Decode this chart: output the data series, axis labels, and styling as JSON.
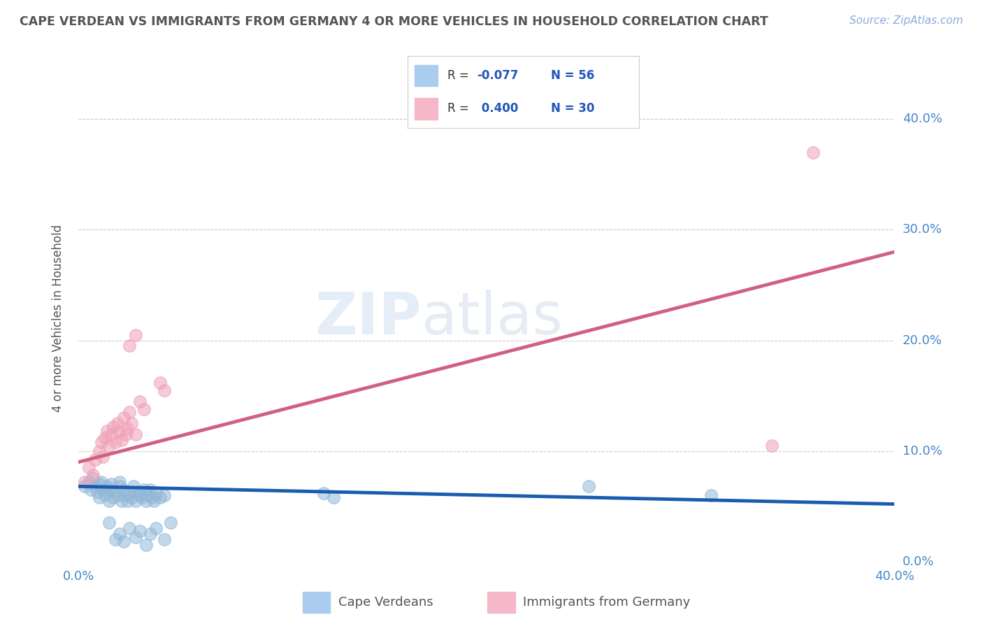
{
  "title": "CAPE VERDEAN VS IMMIGRANTS FROM GERMANY 4 OR MORE VEHICLES IN HOUSEHOLD CORRELATION CHART",
  "source_text": "Source: ZipAtlas.com",
  "ylabel": "4 or more Vehicles in Household",
  "xlim": [
    0.0,
    0.4
  ],
  "ylim": [
    0.0,
    0.44
  ],
  "yticks": [
    0.0,
    0.1,
    0.2,
    0.3,
    0.4
  ],
  "grid_color": "#cccccc",
  "background_color": "#ffffff",
  "watermark_zip": "ZIP",
  "watermark_atlas": "atlas",
  "legend_r1": "R = -0.077",
  "legend_n1": "N = 56",
  "legend_r2": "R =  0.400",
  "legend_n2": "N = 30",
  "blue_color": "#92b8d8",
  "pink_color": "#f0a0b8",
  "blue_line_color": "#1a5cb0",
  "pink_line_color": "#d06080",
  "blue_scatter": [
    [
      0.003,
      0.068
    ],
    [
      0.005,
      0.072
    ],
    [
      0.006,
      0.065
    ],
    [
      0.007,
      0.075
    ],
    [
      0.008,
      0.068
    ],
    [
      0.009,
      0.063
    ],
    [
      0.01,
      0.058
    ],
    [
      0.01,
      0.07
    ],
    [
      0.011,
      0.072
    ],
    [
      0.012,
      0.065
    ],
    [
      0.013,
      0.06
    ],
    [
      0.014,
      0.068
    ],
    [
      0.015,
      0.055
    ],
    [
      0.015,
      0.065
    ],
    [
      0.016,
      0.07
    ],
    [
      0.017,
      0.058
    ],
    [
      0.018,
      0.063
    ],
    [
      0.019,
      0.06
    ],
    [
      0.02,
      0.068
    ],
    [
      0.02,
      0.072
    ],
    [
      0.021,
      0.055
    ],
    [
      0.022,
      0.065
    ],
    [
      0.023,
      0.06
    ],
    [
      0.024,
      0.055
    ],
    [
      0.025,
      0.062
    ],
    [
      0.026,
      0.058
    ],
    [
      0.027,
      0.068
    ],
    [
      0.028,
      0.055
    ],
    [
      0.029,
      0.063
    ],
    [
      0.03,
      0.06
    ],
    [
      0.031,
      0.058
    ],
    [
      0.032,
      0.065
    ],
    [
      0.033,
      0.055
    ],
    [
      0.034,
      0.06
    ],
    [
      0.035,
      0.065
    ],
    [
      0.036,
      0.058
    ],
    [
      0.037,
      0.055
    ],
    [
      0.038,
      0.062
    ],
    [
      0.04,
      0.058
    ],
    [
      0.042,
      0.06
    ],
    [
      0.015,
      0.035
    ],
    [
      0.018,
      0.02
    ],
    [
      0.02,
      0.025
    ],
    [
      0.022,
      0.018
    ],
    [
      0.025,
      0.03
    ],
    [
      0.028,
      0.022
    ],
    [
      0.03,
      0.028
    ],
    [
      0.033,
      0.015
    ],
    [
      0.035,
      0.025
    ],
    [
      0.038,
      0.03
    ],
    [
      0.042,
      0.02
    ],
    [
      0.045,
      0.035
    ],
    [
      0.12,
      0.062
    ],
    [
      0.125,
      0.058
    ],
    [
      0.25,
      0.068
    ],
    [
      0.31,
      0.06
    ]
  ],
  "pink_scatter": [
    [
      0.003,
      0.072
    ],
    [
      0.005,
      0.085
    ],
    [
      0.007,
      0.078
    ],
    [
      0.008,
      0.092
    ],
    [
      0.01,
      0.1
    ],
    [
      0.011,
      0.108
    ],
    [
      0.012,
      0.095
    ],
    [
      0.013,
      0.112
    ],
    [
      0.014,
      0.118
    ],
    [
      0.015,
      0.105
    ],
    [
      0.016,
      0.115
    ],
    [
      0.017,
      0.122
    ],
    [
      0.018,
      0.108
    ],
    [
      0.019,
      0.125
    ],
    [
      0.02,
      0.118
    ],
    [
      0.021,
      0.11
    ],
    [
      0.022,
      0.13
    ],
    [
      0.023,
      0.115
    ],
    [
      0.024,
      0.12
    ],
    [
      0.025,
      0.135
    ],
    [
      0.026,
      0.125
    ],
    [
      0.028,
      0.115
    ],
    [
      0.03,
      0.145
    ],
    [
      0.032,
      0.138
    ],
    [
      0.04,
      0.162
    ],
    [
      0.042,
      0.155
    ],
    [
      0.025,
      0.195
    ],
    [
      0.028,
      0.205
    ],
    [
      0.34,
      0.105
    ],
    [
      0.36,
      0.37
    ]
  ],
  "blue_line_x": [
    0.0,
    0.4
  ],
  "blue_line_y": [
    0.068,
    0.052
  ],
  "pink_line_x": [
    0.0,
    0.4
  ],
  "pink_line_y": [
    0.09,
    0.28
  ]
}
